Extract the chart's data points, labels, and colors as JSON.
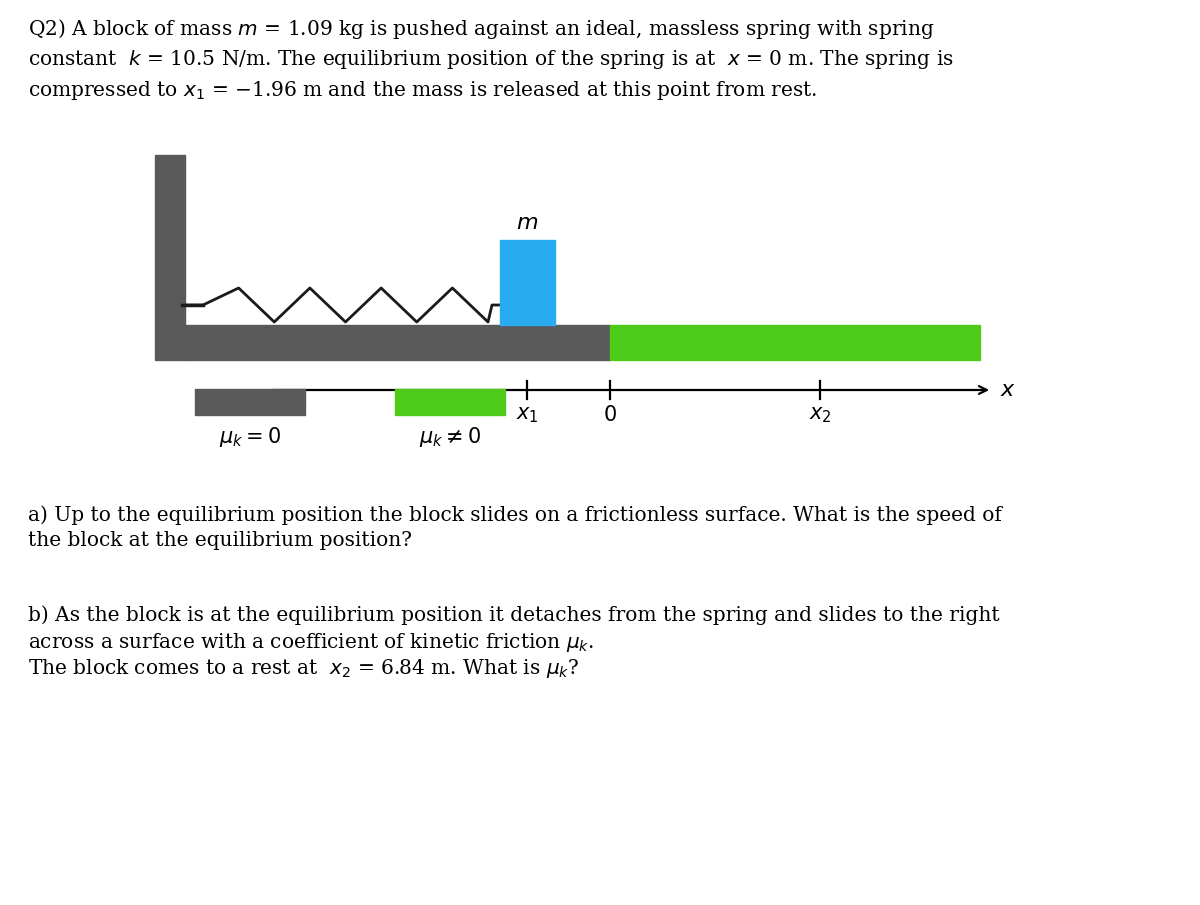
{
  "bg_color": "#ffffff",
  "fig_width": 12.0,
  "fig_height": 9.05,
  "line1": "Q2) A block of mass $m$ = 1.09 kg is pushed against an ideal, massless spring with spring",
  "line2": "constant  $k$ = 10.5 N/m. The equilibrium position of the spring is at  $x$ = 0 m. The spring is",
  "line3": "compressed to $x_1$ = −1.96 m and the mass is released at this point from rest.",
  "part_a_text_l1": "a) Up to the equilibrium position the block slides on a frictionless surface. What is the speed of",
  "part_a_text_l2": "the block at the equilibrium position?",
  "part_b_text_l1": "b) As the block is at the equilibrium position it detaches from the spring and slides to the right",
  "part_b_text_l2": "across a surface with a coefficient of kinetic friction $\\mu_k$.",
  "part_b_text_l3": "The block comes to a rest at  $x_2$ = 6.84 m. What is $\\mu_k$?",
  "wall_color": "#595959",
  "floor_dark_color": "#595959",
  "floor_green_color": "#4ecb18",
  "block_color": "#29abf0",
  "spring_color": "#1a1a1a",
  "legend_dark_label_l1": "$\\mu_k = 0$",
  "legend_green_label_l1": "$\\mu_k \\neq 0$"
}
